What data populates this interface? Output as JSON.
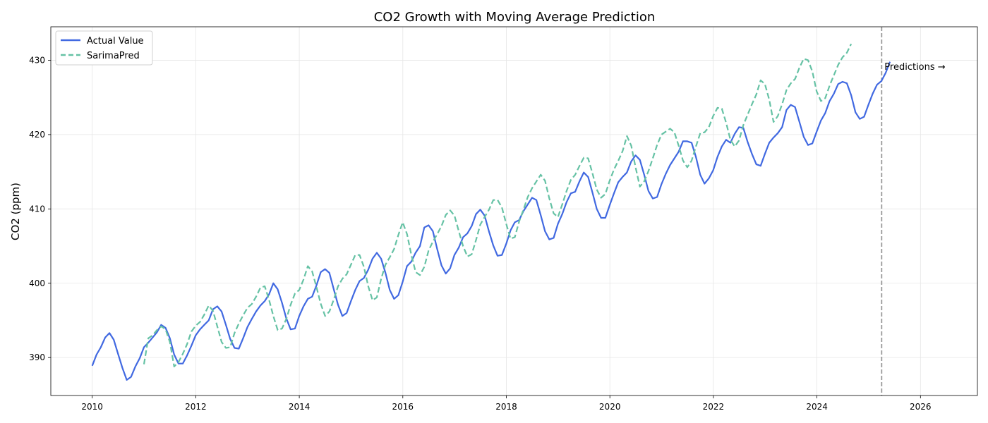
{
  "chart_data": {
    "type": "line",
    "title": "CO2 Growth with Moving Average Prediction",
    "xlabel": "",
    "ylabel": "CO2 (ppm)",
    "xlim": [
      2009.2,
      2027.1
    ],
    "ylim": [
      384.9,
      434.5
    ],
    "x_ticks": [
      2010,
      2012,
      2014,
      2016,
      2018,
      2020,
      2022,
      2024,
      2026
    ],
    "y_ticks": [
      390,
      400,
      410,
      420,
      430
    ],
    "grid": true,
    "legend_position": "upper-left",
    "annotation": {
      "text": "Predictions →",
      "x": 2025.25
    },
    "colors": {
      "actual": "#4169e1",
      "pred": "#66c2a5",
      "divider": "#999999"
    },
    "series": [
      {
        "name": "Actual Value",
        "style": "solid",
        "x_start": 2010.0,
        "step": 0.0833,
        "values": [
          388.9,
          390.4,
          391.4,
          392.7,
          393.3,
          392.4,
          390.5,
          388.6,
          387.0,
          387.4,
          388.8,
          389.9,
          391.4,
          392.0,
          392.7,
          393.4,
          394.4,
          394.0,
          392.6,
          390.4,
          389.2,
          389.2,
          390.3,
          391.6,
          393.0,
          393.8,
          394.4,
          395.0,
          396.5,
          396.9,
          396.2,
          394.4,
          392.5,
          391.3,
          391.2,
          392.6,
          394.1,
          395.2,
          396.2,
          397.0,
          397.6,
          398.5,
          400.0,
          399.2,
          397.4,
          395.3,
          393.8,
          393.9,
          395.6,
          396.9,
          397.9,
          398.2,
          399.7,
          401.5,
          401.9,
          401.4,
          399.2,
          397.1,
          395.6,
          396.0,
          397.6,
          399.1,
          400.3,
          400.7,
          401.8,
          403.3,
          404.1,
          403.3,
          401.4,
          399.1,
          397.9,
          398.4,
          400.2,
          402.3,
          402.9,
          404.1,
          405.0,
          407.5,
          407.8,
          407.0,
          404.6,
          402.4,
          401.3,
          402.0,
          403.8,
          404.8,
          406.2,
          406.7,
          407.7,
          409.3,
          409.9,
          409.1,
          407.0,
          405.1,
          403.7,
          403.8,
          405.3,
          407.1,
          408.2,
          408.5,
          409.7,
          410.6,
          411.5,
          411.2,
          409.2,
          407.0,
          405.9,
          406.1,
          408.0,
          409.3,
          410.9,
          412.1,
          412.3,
          413.7,
          414.9,
          414.3,
          412.2,
          410.0,
          408.8,
          408.8,
          410.5,
          412.1,
          413.6,
          414.3,
          414.9,
          416.4,
          417.2,
          416.6,
          414.6,
          412.4,
          411.4,
          411.6,
          413.3,
          414.7,
          415.9,
          416.8,
          417.7,
          419.1,
          419.1,
          418.9,
          417.0,
          414.6,
          413.4,
          414.1,
          415.2,
          417.0,
          418.4,
          419.3,
          418.9,
          420.1,
          421.0,
          420.9,
          419.0,
          417.4,
          416.0,
          415.8,
          417.4,
          418.9,
          419.6,
          420.2,
          421.0,
          423.3,
          424.0,
          423.7,
          421.7,
          419.7,
          418.6,
          418.8,
          420.4,
          421.9,
          422.9,
          424.5,
          425.5,
          426.8,
          427.1,
          426.9,
          425.3,
          423.0,
          422.1,
          422.4,
          424.0,
          425.5,
          426.7,
          427.2,
          428.3,
          429.8
        ]
      },
      {
        "name": "SarimaPred",
        "style": "dashed",
        "x_start": 2011.0,
        "step": 0.0833,
        "values": [
          389.1,
          392.6,
          393.0,
          393.7,
          394.2,
          393.8,
          392.1,
          388.8,
          389.4,
          390.5,
          391.8,
          393.5,
          394.3,
          394.8,
          395.8,
          397.0,
          396.3,
          394.2,
          392.1,
          391.3,
          391.4,
          393.3,
          394.6,
          395.7,
          396.7,
          397.2,
          398.2,
          399.4,
          399.6,
          397.8,
          395.6,
          393.7,
          393.9,
          395.2,
          397.1,
          398.6,
          399.1,
          400.5,
          402.3,
          401.6,
          399.5,
          397.2,
          395.6,
          396.2,
          397.8,
          399.6,
          400.6,
          401.2,
          402.5,
          403.8,
          403.8,
          402.2,
          399.6,
          397.7,
          398.1,
          400.6,
          402.5,
          403.5,
          404.6,
          406.5,
          408.2,
          406.6,
          403.8,
          401.5,
          401.1,
          402.2,
          404.4,
          405.6,
          406.6,
          407.7,
          409.2,
          409.8,
          409.1,
          407.0,
          405.0,
          403.6,
          403.9,
          405.8,
          407.9,
          408.9,
          409.9,
          411.2,
          411.2,
          410.2,
          408.0,
          406.0,
          406.2,
          408.3,
          409.9,
          411.6,
          412.8,
          413.7,
          414.6,
          413.8,
          411.4,
          409.4,
          408.9,
          410.6,
          412.4,
          413.9,
          414.6,
          415.8,
          416.9,
          416.8,
          414.8,
          412.6,
          411.5,
          412.0,
          413.8,
          415.3,
          416.5,
          417.8,
          419.8,
          418.5,
          415.6,
          413.0,
          413.7,
          415.1,
          416.8,
          418.6,
          420.0,
          420.4,
          420.8,
          420.3,
          418.5,
          416.5,
          415.6,
          416.5,
          418.4,
          420.2,
          420.3,
          421.0,
          422.5,
          423.6,
          423.5,
          421.6,
          419.3,
          418.4,
          419.2,
          421.3,
          422.7,
          424.1,
          425.4,
          427.3,
          426.8,
          424.7,
          421.7,
          422.5,
          424.1,
          426.0,
          426.9,
          427.5,
          429.0,
          430.2,
          430.0,
          428.5,
          425.8,
          424.5,
          424.9,
          426.6,
          428.0,
          429.4,
          430.4,
          431.0,
          432.2
        ]
      }
    ]
  }
}
